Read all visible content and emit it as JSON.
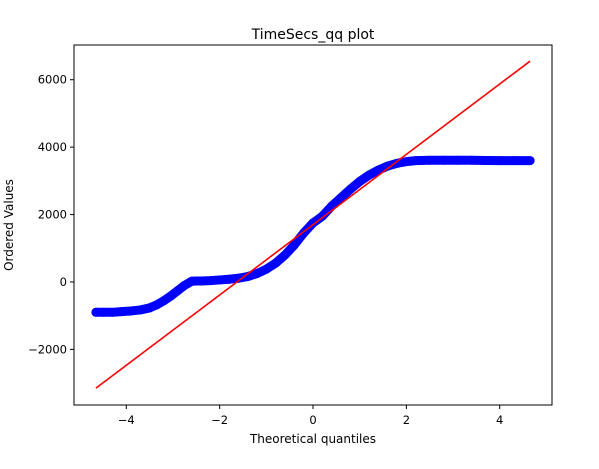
{
  "chart_data": {
    "type": "scatter",
    "title": "TimeSecs_qq plot",
    "xlabel": "Theoretical quantiles",
    "ylabel": "Ordered Values",
    "xlim": [
      -5.12,
      5.12
    ],
    "ylim": [
      -3650,
      7030
    ],
    "xticks": [
      -4,
      -2,
      0,
      2,
      4
    ],
    "xtick_labels": [
      "−4",
      "−2",
      "0",
      "2",
      "4"
    ],
    "yticks": [
      -2000,
      0,
      2000,
      4000,
      6000
    ],
    "ytick_labels": [
      "−2000",
      "0",
      "2000",
      "4000",
      "6000"
    ],
    "grid": false,
    "colors": {
      "points": "#0000ff",
      "fit_line": "#ff0000"
    },
    "series": [
      {
        "kind": "points",
        "x": [
          -4.65,
          -4.5,
          -4.3,
          -4.1,
          -3.9,
          -3.7,
          -3.5,
          -3.35,
          -3.2,
          -3.05,
          -2.9,
          -2.75,
          -2.6,
          -2.5,
          -2.4,
          -2.2,
          -2.0,
          -1.8,
          -1.6,
          -1.4,
          -1.2,
          -1.0,
          -0.8,
          -0.6,
          -0.4,
          -0.2,
          0.0,
          0.2,
          0.4,
          0.6,
          0.8,
          1.0,
          1.2,
          1.4,
          1.6,
          1.8,
          2.0,
          2.2,
          2.5,
          2.8,
          3.1,
          3.4,
          3.7,
          4.0,
          4.3,
          4.65
        ],
        "y": [
          -900,
          -900,
          -900,
          -880,
          -860,
          -830,
          -770,
          -680,
          -560,
          -420,
          -260,
          -100,
          20,
          30,
          30,
          40,
          60,
          80,
          110,
          160,
          250,
          380,
          560,
          800,
          1100,
          1450,
          1750,
          1950,
          2250,
          2500,
          2750,
          2980,
          3170,
          3320,
          3440,
          3520,
          3570,
          3600,
          3610,
          3610,
          3610,
          3610,
          3605,
          3600,
          3600,
          3600
        ]
      },
      {
        "kind": "fit_line",
        "x": [
          -4.65,
          4.65
        ],
        "y": [
          -3150,
          6550
        ]
      }
    ]
  }
}
